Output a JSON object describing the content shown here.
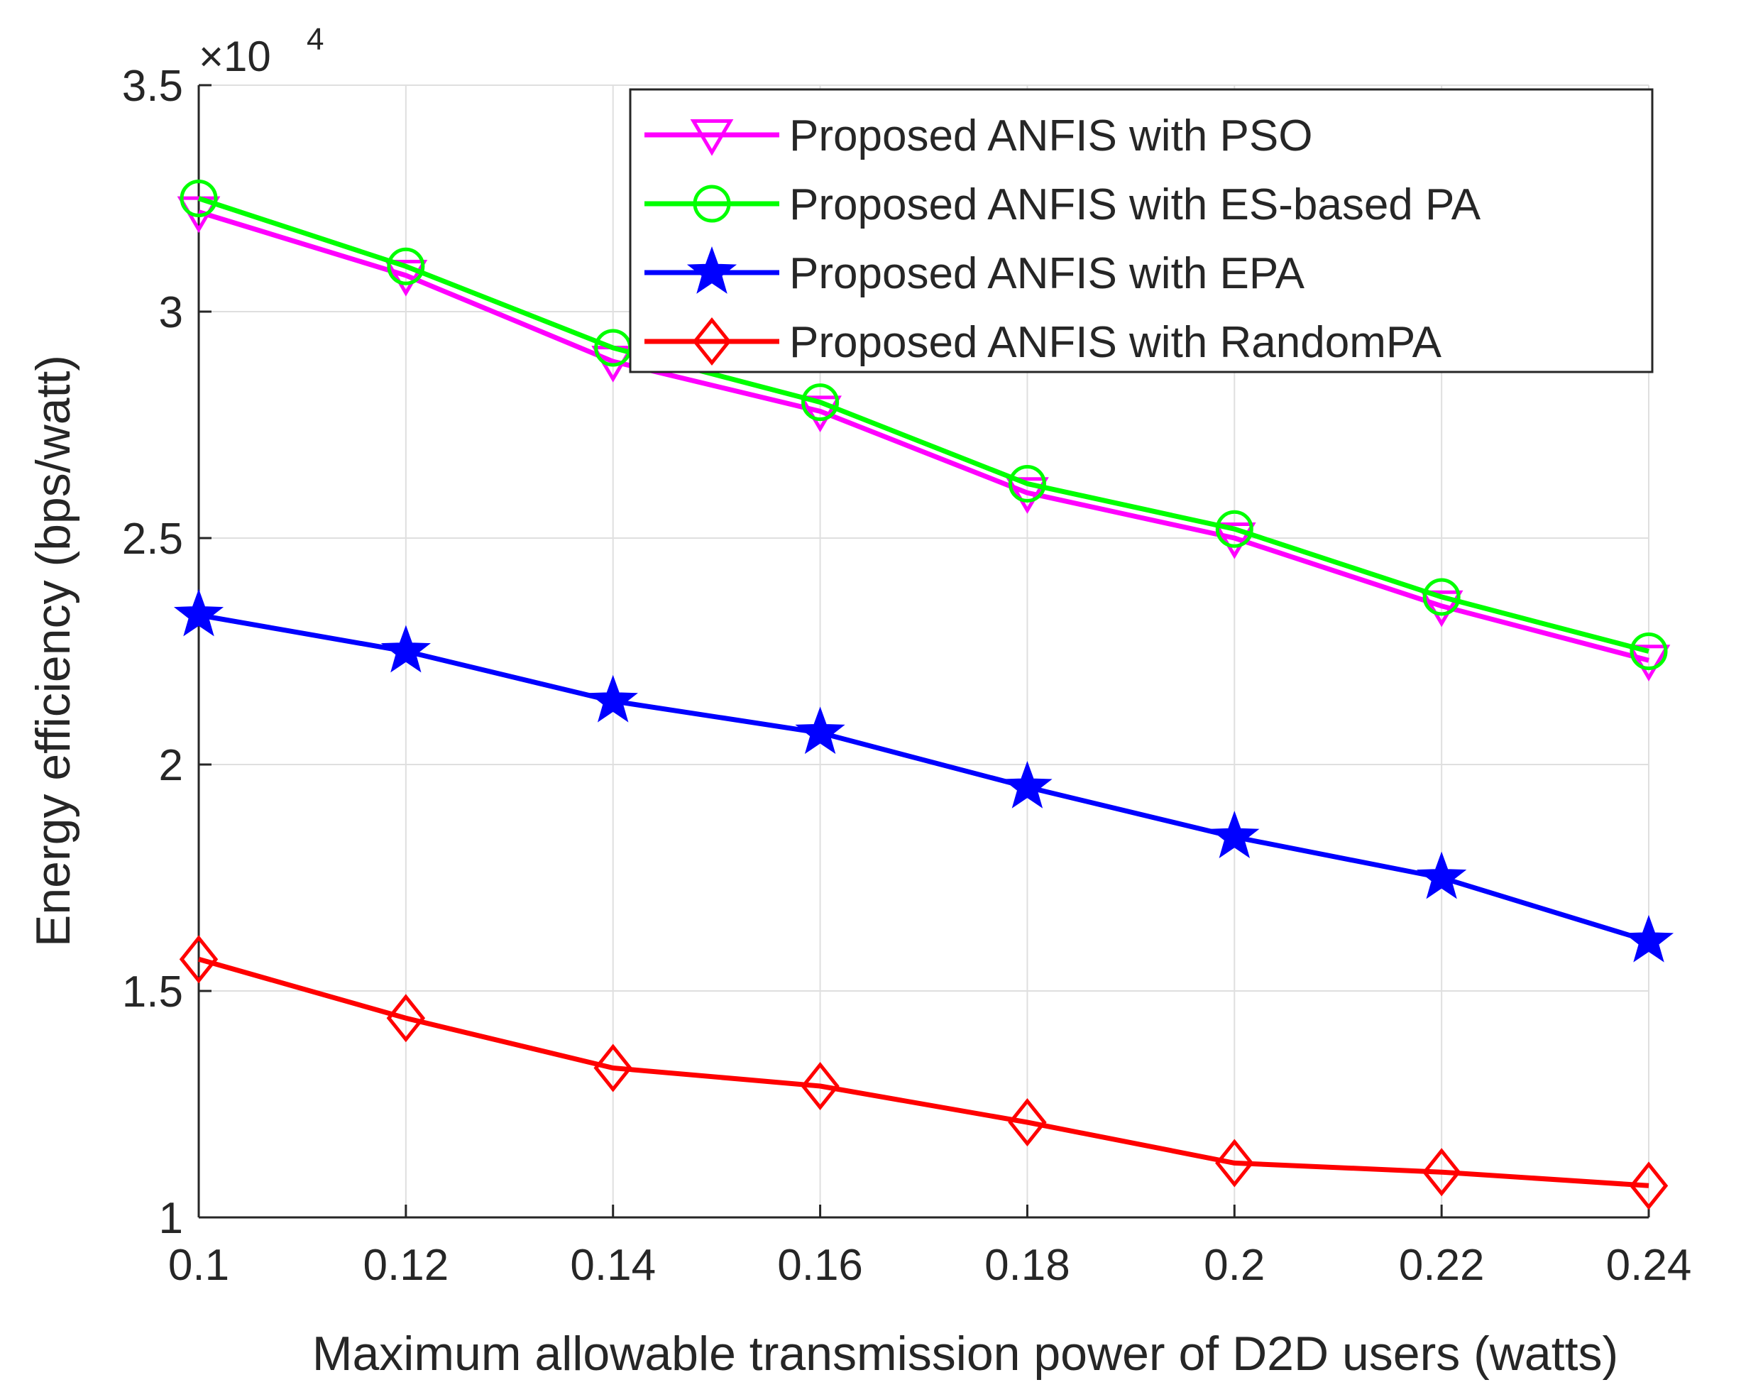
{
  "chart_data": {
    "type": "line",
    "title": "",
    "xlabel": "Maximum allowable transmission power of D2D users (watts)",
    "ylabel": "Energy efficiency (bps/watt)",
    "y_multiplier_label": "×10",
    "y_multiplier_exponent": "4",
    "x": [
      0.1,
      0.12,
      0.14,
      0.16,
      0.18,
      0.2,
      0.22,
      0.24
    ],
    "xlim": [
      0.1,
      0.24
    ],
    "ylim": [
      1,
      3.5
    ],
    "x_ticks": [
      0.1,
      0.12,
      0.14,
      0.16,
      0.18,
      0.2,
      0.22,
      0.24
    ],
    "x_tick_labels": [
      "0.1",
      "0.12",
      "0.14",
      "0.16",
      "0.18",
      "0.2",
      "0.22",
      "0.24"
    ],
    "y_ticks": [
      1,
      1.5,
      2,
      2.5,
      3,
      3.5
    ],
    "y_tick_labels": [
      "1",
      "1.5",
      "2",
      "2.5",
      "3",
      "3.5"
    ],
    "grid": true,
    "legend_position": "top-right",
    "series": [
      {
        "name": "Proposed ANFIS with PSO",
        "color": "#ff00ff",
        "marker": "triangle-down",
        "values": [
          3.22,
          3.08,
          2.89,
          2.78,
          2.6,
          2.5,
          2.35,
          2.23
        ]
      },
      {
        "name": "Proposed ANFIS with ES-based PA",
        "color": "#00ff00",
        "marker": "circle",
        "values": [
          3.25,
          3.1,
          2.92,
          2.8,
          2.62,
          2.52,
          2.37,
          2.25
        ]
      },
      {
        "name": "Proposed ANFIS with EPA",
        "color": "#0000ff",
        "marker": "star",
        "values": [
          2.33,
          2.25,
          2.14,
          2.07,
          1.95,
          1.84,
          1.75,
          1.61
        ]
      },
      {
        "name": "Proposed ANFIS with RandomPA",
        "color": "#ff0000",
        "marker": "diamond",
        "values": [
          1.57,
          1.44,
          1.33,
          1.29,
          1.21,
          1.12,
          1.1,
          1.07
        ]
      }
    ]
  }
}
